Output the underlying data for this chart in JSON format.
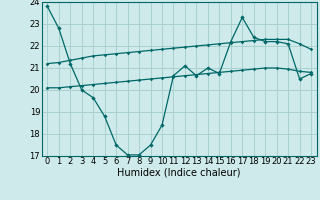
{
  "xlabel": "Humidex (Indice chaleur)",
  "background_color": "#ceeaea",
  "grid_color": "#aad0d0",
  "line_color": "#006868",
  "xlim": [
    -0.5,
    23.5
  ],
  "ylim": [
    17,
    24
  ],
  "yticks": [
    17,
    18,
    19,
    20,
    21,
    22,
    23,
    24
  ],
  "xticks": [
    0,
    1,
    2,
    3,
    4,
    5,
    6,
    7,
    8,
    9,
    10,
    11,
    12,
    13,
    14,
    15,
    16,
    17,
    18,
    19,
    20,
    21,
    22,
    23
  ],
  "series1": [
    23.8,
    22.8,
    21.2,
    20.0,
    19.65,
    18.8,
    17.5,
    17.05,
    17.05,
    17.5,
    18.4,
    20.65,
    21.1,
    20.65,
    21.0,
    20.75,
    22.2,
    23.3,
    22.4,
    22.2,
    22.2,
    22.1,
    20.5,
    20.75
  ],
  "series2": [
    21.2,
    21.25,
    21.35,
    21.45,
    21.55,
    21.6,
    21.65,
    21.7,
    21.75,
    21.8,
    21.85,
    21.9,
    21.95,
    22.0,
    22.05,
    22.1,
    22.15,
    22.2,
    22.25,
    22.3,
    22.3,
    22.3,
    22.1,
    21.85
  ],
  "series3": [
    20.1,
    20.1,
    20.15,
    20.2,
    20.25,
    20.3,
    20.35,
    20.4,
    20.45,
    20.5,
    20.55,
    20.6,
    20.65,
    20.7,
    20.75,
    20.8,
    20.85,
    20.9,
    20.95,
    21.0,
    21.0,
    20.95,
    20.85,
    20.8
  ],
  "tick_fontsize": 6,
  "xlabel_fontsize": 7
}
